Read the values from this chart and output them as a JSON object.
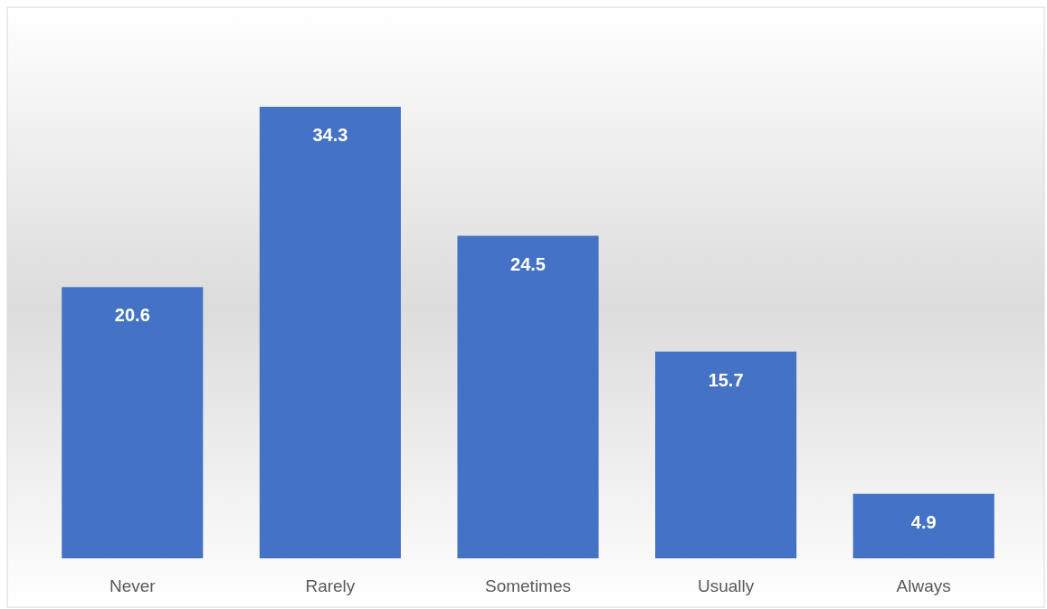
{
  "chart_data": {
    "type": "bar",
    "categories": [
      "Never",
      "Rarely",
      "Sometimes",
      "Usually",
      "Always"
    ],
    "values": [
      20.6,
      34.3,
      24.5,
      15.7,
      4.9
    ],
    "color": "#4472c4",
    "data_labels": true
  }
}
